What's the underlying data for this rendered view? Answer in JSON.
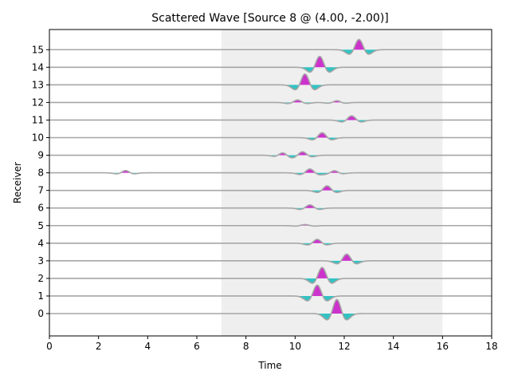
{
  "chart_data": {
    "type": "line",
    "title": "Scattered Wave [Source 8 @ (4.00, -2.00)]",
    "xlabel": "Time",
    "ylabel": "Receiver",
    "xlim": [
      0,
      18
    ],
    "x_ticks": [
      0,
      2,
      4,
      6,
      8,
      10,
      12,
      14,
      16,
      18
    ],
    "y_ticks": [
      0,
      1,
      2,
      3,
      4,
      5,
      6,
      7,
      8,
      9,
      10,
      11,
      12,
      13,
      14,
      15
    ],
    "shaded_window": [
      7,
      16
    ],
    "colors": {
      "positive_fill": "#cc33cc",
      "negative_fill": "#33c2c2",
      "trace": "#a6a6a6",
      "window": "#efefef"
    },
    "series": [
      {
        "receiver": 0,
        "pulses": [
          {
            "t": 11.7,
            "a": 0.8,
            "w": 0.55,
            "p": 1
          }
        ]
      },
      {
        "receiver": 1,
        "pulses": [
          {
            "t": 10.9,
            "a": 0.62,
            "w": 0.55,
            "p": 1
          }
        ]
      },
      {
        "receiver": 2,
        "pulses": [
          {
            "t": 11.1,
            "a": 0.62,
            "w": 0.55,
            "p": 1
          }
        ]
      },
      {
        "receiver": 3,
        "pulses": [
          {
            "t": 12.1,
            "a": 0.38,
            "w": 0.55,
            "p": 1
          }
        ]
      },
      {
        "receiver": 4,
        "pulses": [
          {
            "t": 10.9,
            "a": 0.22,
            "w": 0.55,
            "p": 1
          }
        ]
      },
      {
        "receiver": 5,
        "pulses": [
          {
            "t": 10.4,
            "a": 0.06,
            "w": 0.55,
            "p": 1
          }
        ]
      },
      {
        "receiver": 6,
        "pulses": [
          {
            "t": 10.6,
            "a": 0.18,
            "w": 0.55,
            "p": 1
          }
        ]
      },
      {
        "receiver": 7,
        "pulses": [
          {
            "t": 11.3,
            "a": 0.26,
            "w": 0.55,
            "p": 1
          }
        ]
      },
      {
        "receiver": 8,
        "pulses": [
          {
            "t": 3.1,
            "a": 0.13,
            "w": 0.5,
            "p": 1
          },
          {
            "t": 10.6,
            "a": 0.22,
            "w": 0.55,
            "p": 1
          },
          {
            "t": 11.6,
            "a": 0.12,
            "w": 0.5,
            "p": 1
          }
        ]
      },
      {
        "receiver": 9,
        "pulses": [
          {
            "t": 9.5,
            "a": 0.14,
            "w": 0.5,
            "p": 1
          },
          {
            "t": 10.3,
            "a": 0.2,
            "w": 0.55,
            "p": 1
          }
        ]
      },
      {
        "receiver": 10,
        "pulses": [
          {
            "t": 11.1,
            "a": 0.28,
            "w": 0.55,
            "p": 1
          }
        ]
      },
      {
        "receiver": 11,
        "pulses": [
          {
            "t": 12.3,
            "a": 0.24,
            "w": 0.55,
            "p": 1
          }
        ]
      },
      {
        "receiver": 12,
        "pulses": [
          {
            "t": 10.1,
            "a": 0.14,
            "w": 0.55,
            "p": 1
          },
          {
            "t": 11.7,
            "a": 0.1,
            "w": 0.5,
            "p": 1
          }
        ]
      },
      {
        "receiver": 13,
        "pulses": [
          {
            "t": 10.4,
            "a": 0.62,
            "w": 0.55,
            "p": 1
          }
        ]
      },
      {
        "receiver": 14,
        "pulses": [
          {
            "t": 11.0,
            "a": 0.62,
            "w": 0.55,
            "p": 1
          }
        ]
      },
      {
        "receiver": 15,
        "pulses": [
          {
            "t": 12.6,
            "a": 0.58,
            "w": 0.55,
            "p": 1
          }
        ]
      }
    ]
  }
}
